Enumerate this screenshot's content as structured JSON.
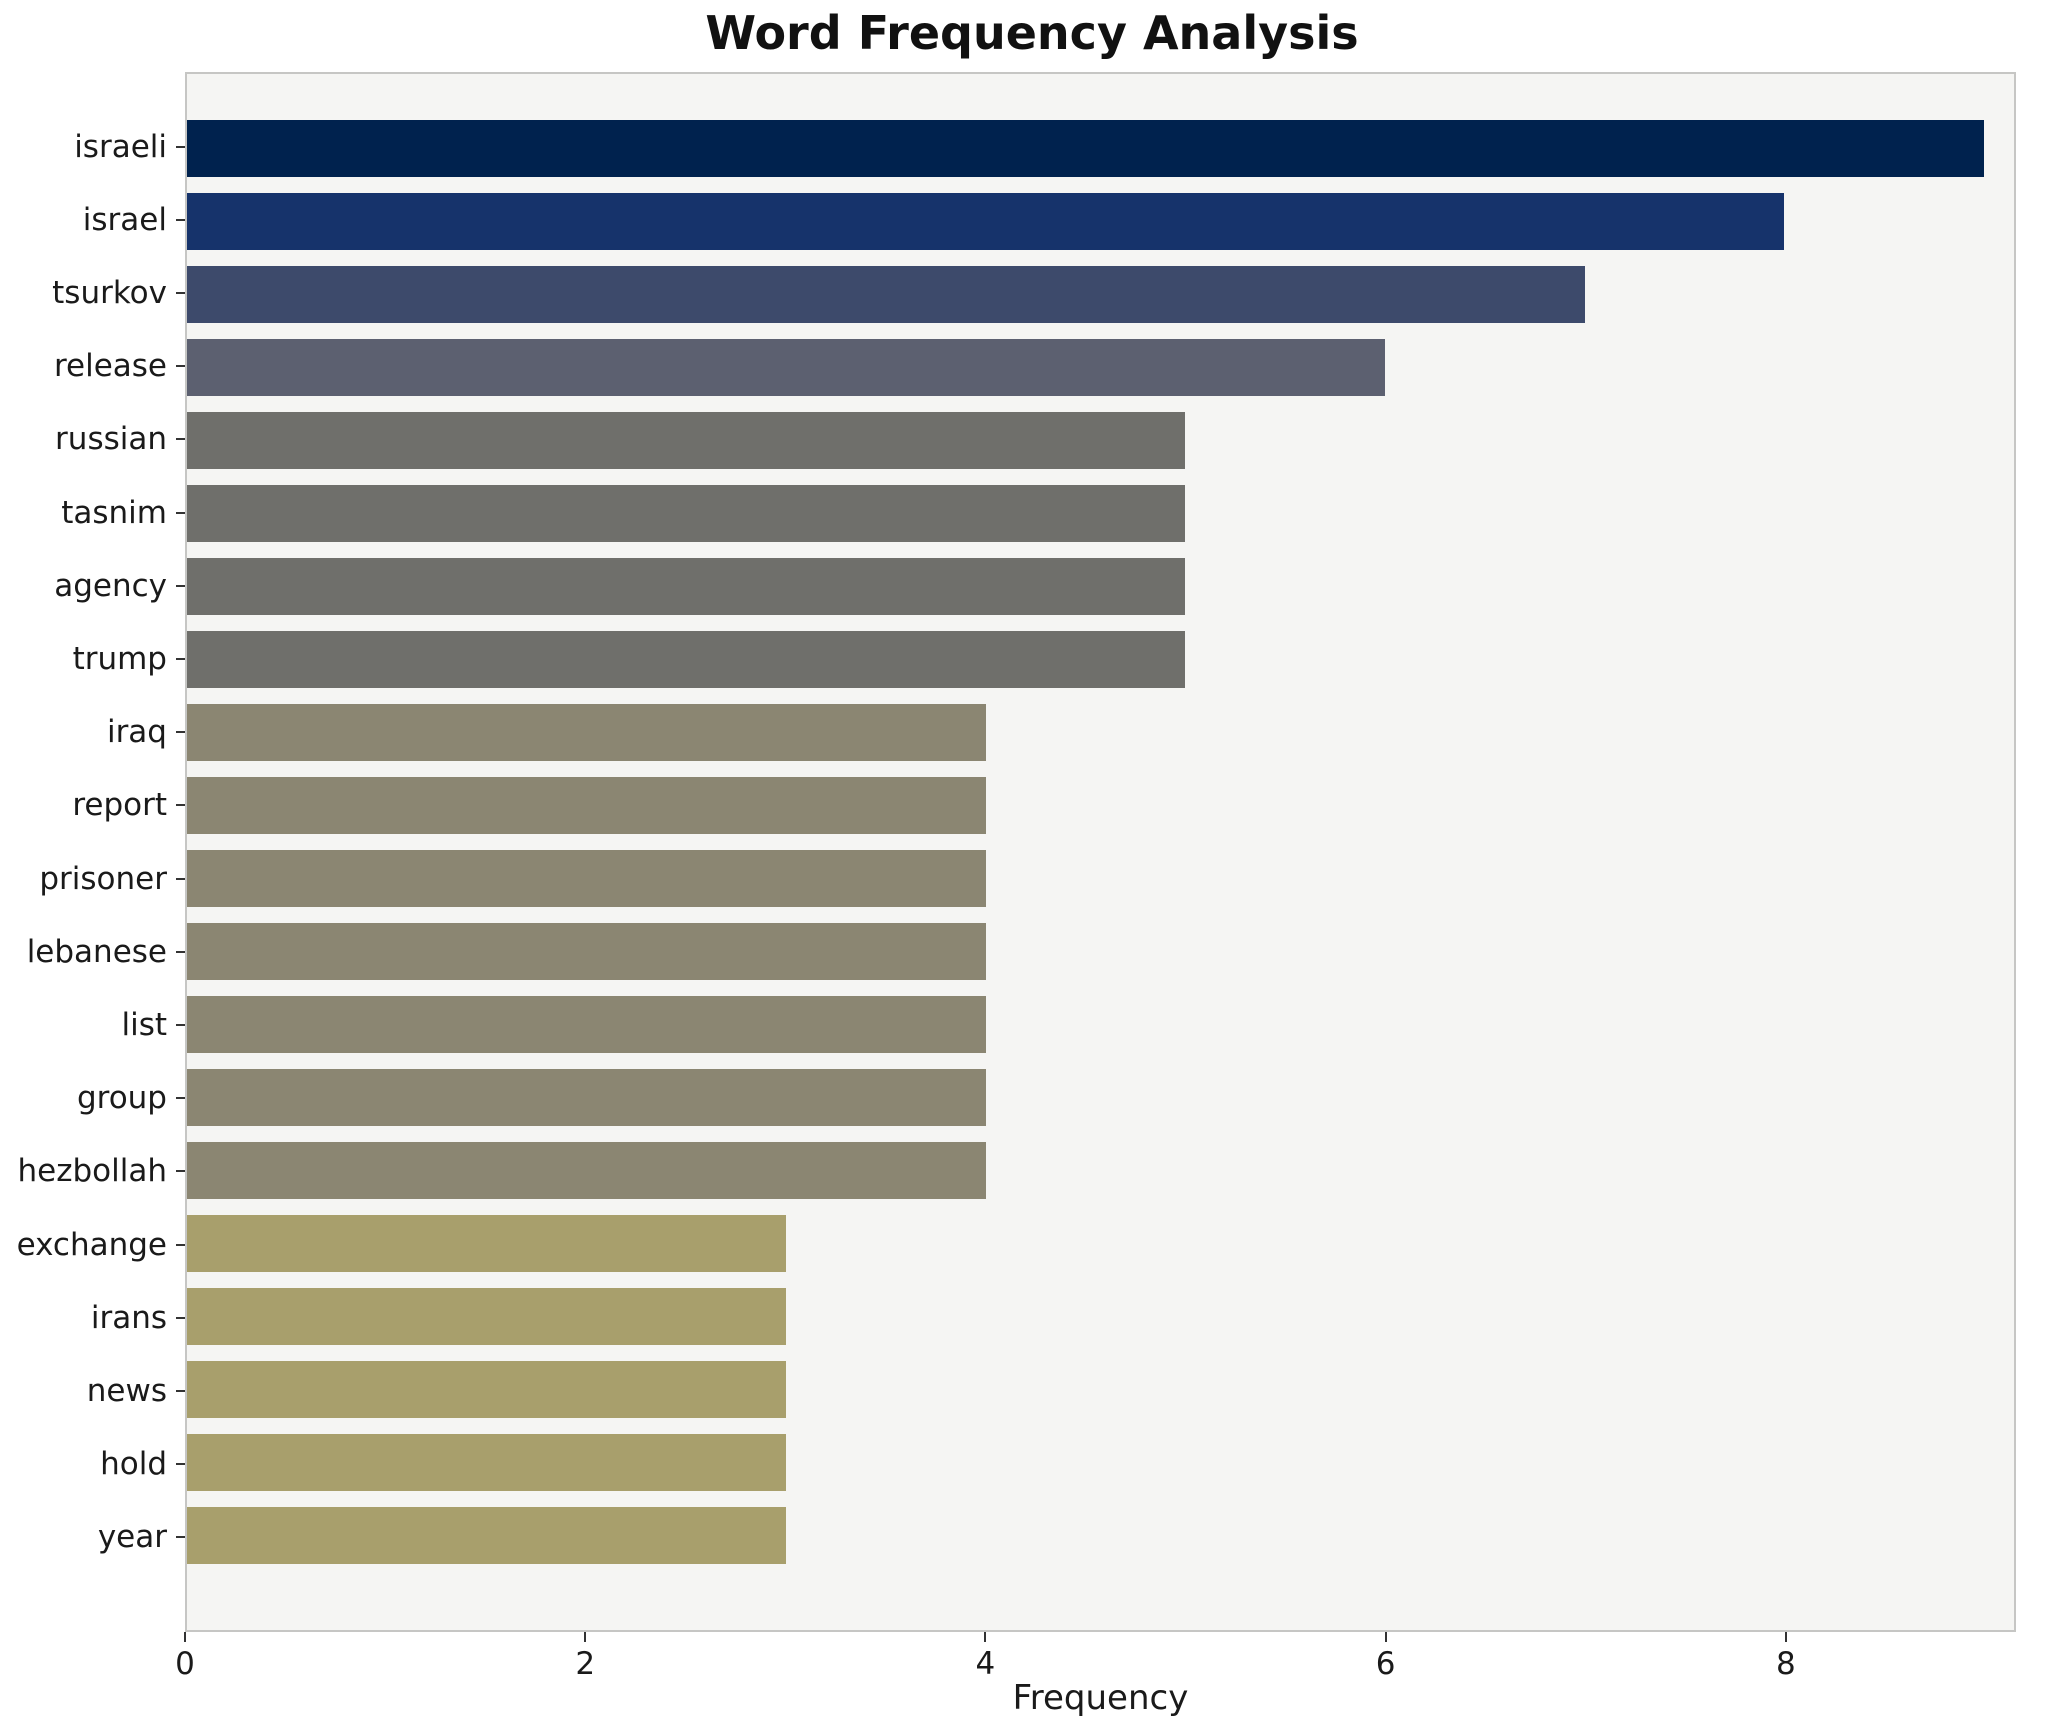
{
  "chart_data": {
    "type": "bar",
    "orientation": "horizontal",
    "title": "Word Frequency Analysis",
    "xlabel": "Frequency",
    "ylabel": "",
    "categories": [
      "israeli",
      "israel",
      "tsurkov",
      "release",
      "russian",
      "tasnim",
      "agency",
      "trump",
      "iraq",
      "report",
      "prisoner",
      "lebanese",
      "list",
      "group",
      "hezbollah",
      "exchange",
      "irans",
      "news",
      "hold",
      "year"
    ],
    "values": [
      9,
      8,
      7,
      6,
      5,
      5,
      5,
      5,
      4,
      4,
      4,
      4,
      4,
      4,
      4,
      3,
      3,
      3,
      3,
      3
    ],
    "colors": [
      "#00224e",
      "#16336b",
      "#3d4a6b",
      "#5c6070",
      "#6f6f6b",
      "#6f6f6b",
      "#6f6f6b",
      "#6f6f6b",
      "#8b8672",
      "#8b8672",
      "#8b8672",
      "#8b8672",
      "#8b8672",
      "#8b8672",
      "#8b8672",
      "#a89f6c",
      "#a89f6c",
      "#a89f6c",
      "#a89f6c",
      "#a89f6c"
    ],
    "xticks": [
      0,
      2,
      4,
      6,
      8
    ],
    "xlim": [
      0,
      9.15
    ],
    "grid": false,
    "legend": false,
    "plot_background": "#f5f5f3",
    "figure_background": "#ffffff"
  }
}
